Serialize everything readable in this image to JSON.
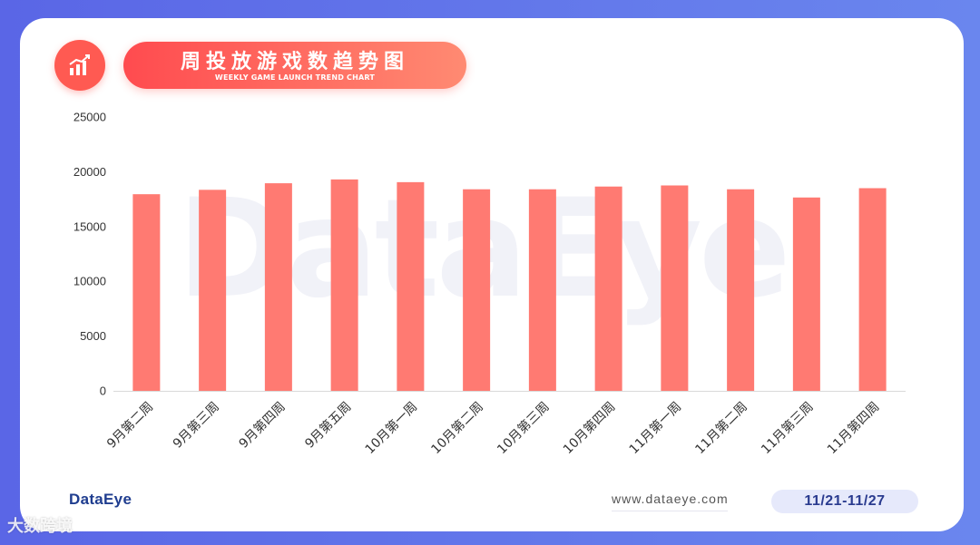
{
  "header": {
    "title": "周投放游戏数趋势图",
    "subtitle": "WEEKLY GAME LAUNCH TREND CHART",
    "icon": "bar-chart-trend-icon"
  },
  "watermark": "DataEye",
  "chart_data": {
    "type": "bar",
    "categories": [
      "9月第二周",
      "9月第三周",
      "9月第四周",
      "9月第五周",
      "10月第一周",
      "10月第二周",
      "10月第三周",
      "10月第四周",
      "11月第一周",
      "11月第二周",
      "11月第三周",
      "11月第四周"
    ],
    "values": [
      17950,
      18350,
      18950,
      19300,
      19050,
      18400,
      18400,
      18650,
      18750,
      18400,
      17650,
      18500
    ],
    "y_ticks": [
      "0",
      "5000",
      "10000",
      "15000",
      "20000",
      "25000"
    ],
    "ylim": [
      0,
      25000
    ],
    "bar_color": "#ff7a72",
    "grid": false
  },
  "footer": {
    "logo": "DataEye",
    "url": "www.dataeye.com",
    "date_range": "11/21-11/27",
    "corner_watermark": "大数跨境"
  },
  "colors": {
    "accent": "#ff5a52",
    "background": "#5a66e6",
    "date_pill": "#e6e9fb"
  }
}
